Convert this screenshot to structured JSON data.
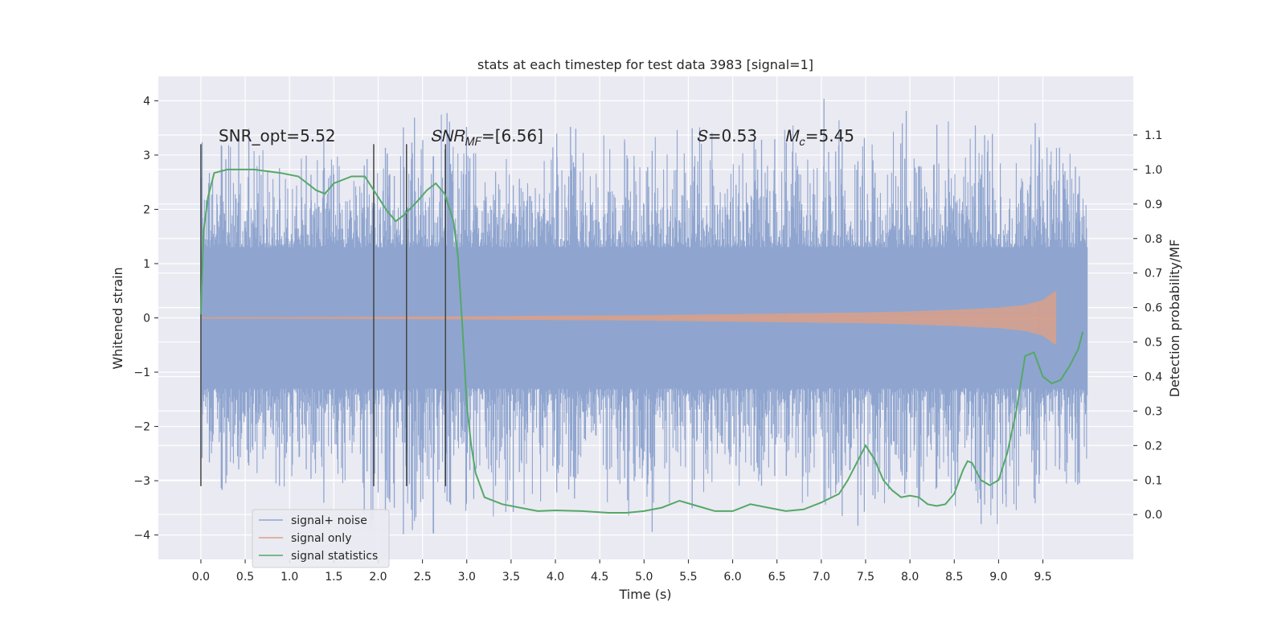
{
  "chart_data": {
    "type": "line",
    "title": "stats at each timestep for test data 3983 [signal=1]",
    "xlabel": "Time (s)",
    "ylabel": "Whitened strain",
    "ylabel_right": "Detection probability/MF",
    "xlim": [
      -0.48,
      10.52
    ],
    "ylim": [
      -4.45,
      4.45
    ],
    "ylim_right": [
      -0.13,
      1.27
    ],
    "x_ticks": [
      "0.0",
      "0.5",
      "1.0",
      "1.5",
      "2.0",
      "2.5",
      "3.0",
      "3.5",
      "4.0",
      "4.5",
      "5.0",
      "5.5",
      "6.0",
      "6.5",
      "7.0",
      "7.5",
      "8.0",
      "8.5",
      "9.0",
      "9.5"
    ],
    "x_tick_values": [
      0,
      0.5,
      1,
      1.5,
      2,
      2.5,
      3,
      3.5,
      4,
      4.5,
      5,
      5.5,
      6,
      6.5,
      7,
      7.5,
      8,
      8.5,
      9,
      9.5
    ],
    "y_ticks_left": [
      "−4",
      "−3",
      "−2",
      "−1",
      "0",
      "1",
      "2",
      "3",
      "4"
    ],
    "y_tick_values_left": [
      -4,
      -3,
      -2,
      -1,
      0,
      1,
      2,
      3,
      4
    ],
    "y_ticks_right": [
      "0.0",
      "0.1",
      "0.2",
      "0.3",
      "0.4",
      "0.5",
      "0.6",
      "0.7",
      "0.8",
      "0.9",
      "1.0",
      "1.1"
    ],
    "y_tick_values_right": [
      0,
      0.1,
      0.2,
      0.3,
      0.4,
      0.5,
      0.6,
      0.7,
      0.8,
      0.9,
      1.0,
      1.1
    ],
    "grid": true,
    "legend_position": "lower-left",
    "series": [
      {
        "name": "signal+ noise",
        "axis": "left",
        "color": "#8fa5cf",
        "style": "dense noise trace, band approx ±1.3 with spikes to ±4",
        "envelope_x": [
          0,
          0.5,
          1,
          1.5,
          2,
          2.5,
          3,
          3.5,
          4,
          4.5,
          5,
          5.5,
          6,
          6.5,
          7,
          7.5,
          8,
          8.5,
          9,
          9.5,
          10
        ],
        "envelope_upper": [
          2.6,
          2.9,
          2.5,
          2.8,
          2.6,
          3.2,
          2.9,
          2.6,
          2.8,
          2.9,
          3.0,
          3.1,
          2.7,
          3.0,
          3.3,
          2.9,
          3.1,
          3.0,
          2.8,
          3.1,
          2.2
        ],
        "envelope_lower": [
          -2.5,
          -3.0,
          -2.7,
          -2.9,
          -3.2,
          -3.5,
          -3.0,
          -3.1,
          -2.9,
          -3.0,
          -3.4,
          -3.0,
          -2.9,
          -3.1,
          -3.2,
          -3.3,
          -3.0,
          -3.2,
          -3.3,
          -2.8,
          -2.5
        ]
      },
      {
        "name": "signal only",
        "axis": "left",
        "color": "#d9a08a",
        "style": "chirp amplitude envelope",
        "x": [
          0,
          1,
          2,
          3,
          4,
          5,
          6,
          7,
          7.5,
          8,
          8.5,
          9,
          9.3,
          9.5,
          9.6,
          9.65
        ],
        "amplitude": [
          0.01,
          0.015,
          0.02,
          0.03,
          0.04,
          0.05,
          0.07,
          0.09,
          0.1,
          0.12,
          0.15,
          0.19,
          0.24,
          0.33,
          0.45,
          0.5
        ]
      },
      {
        "name": "signal statistics",
        "axis": "right",
        "color": "#55a868",
        "x": [
          0,
          0.03,
          0.08,
          0.15,
          0.3,
          0.6,
          0.9,
          1.1,
          1.3,
          1.4,
          1.5,
          1.7,
          1.85,
          2.0,
          2.1,
          2.2,
          2.3,
          2.45,
          2.55,
          2.65,
          2.75,
          2.85,
          2.9,
          2.95,
          3.0,
          3.05,
          3.1,
          3.2,
          3.4,
          3.6,
          3.8,
          4.0,
          4.3,
          4.6,
          4.8,
          5.0,
          5.2,
          5.4,
          5.6,
          5.8,
          6.0,
          6.2,
          6.4,
          6.6,
          6.8,
          7.0,
          7.2,
          7.3,
          7.4,
          7.5,
          7.6,
          7.7,
          7.8,
          7.9,
          8.0,
          8.1,
          8.2,
          8.3,
          8.4,
          8.5,
          8.6,
          8.65,
          8.7,
          8.8,
          8.9,
          9.0,
          9.1,
          9.2,
          9.3,
          9.4,
          9.5,
          9.6,
          9.7,
          9.8,
          9.9,
          9.95
        ],
        "y": [
          0.58,
          0.82,
          0.92,
          0.99,
          1.0,
          1.0,
          0.99,
          0.98,
          0.94,
          0.93,
          0.96,
          0.98,
          0.98,
          0.92,
          0.88,
          0.85,
          0.87,
          0.91,
          0.94,
          0.96,
          0.93,
          0.85,
          0.75,
          0.55,
          0.32,
          0.2,
          0.12,
          0.05,
          0.03,
          0.02,
          0.01,
          0.012,
          0.01,
          0.005,
          0.005,
          0.01,
          0.02,
          0.04,
          0.025,
          0.01,
          0.01,
          0.03,
          0.02,
          0.01,
          0.015,
          0.035,
          0.06,
          0.1,
          0.15,
          0.2,
          0.16,
          0.1,
          0.07,
          0.05,
          0.055,
          0.05,
          0.03,
          0.025,
          0.03,
          0.06,
          0.13,
          0.155,
          0.15,
          0.1,
          0.085,
          0.1,
          0.18,
          0.3,
          0.46,
          0.47,
          0.4,
          0.38,
          0.39,
          0.43,
          0.48,
          0.53
        ]
      }
    ],
    "vertical_markers_x": [
      0.0,
      1.95,
      2.32,
      2.76
    ],
    "vertical_markers_ylim": [
      -3.1,
      3.2
    ],
    "annotations": [
      {
        "text": "SNR_opt=5.52",
        "x": 0.2,
        "y": 3.25
      },
      {
        "text": "𝑆𝑁𝑅",
        "sub": "𝑀𝐹",
        "tail": "=[6.56]",
        "x": 2.6,
        "y": 3.25
      },
      {
        "text": "𝑆=0.53",
        "x": 5.6,
        "y": 3.25
      },
      {
        "text": "𝑀",
        "sub": "𝑐",
        "tail": "=5.45",
        "x": 6.6,
        "y": 3.25
      }
    ]
  }
}
